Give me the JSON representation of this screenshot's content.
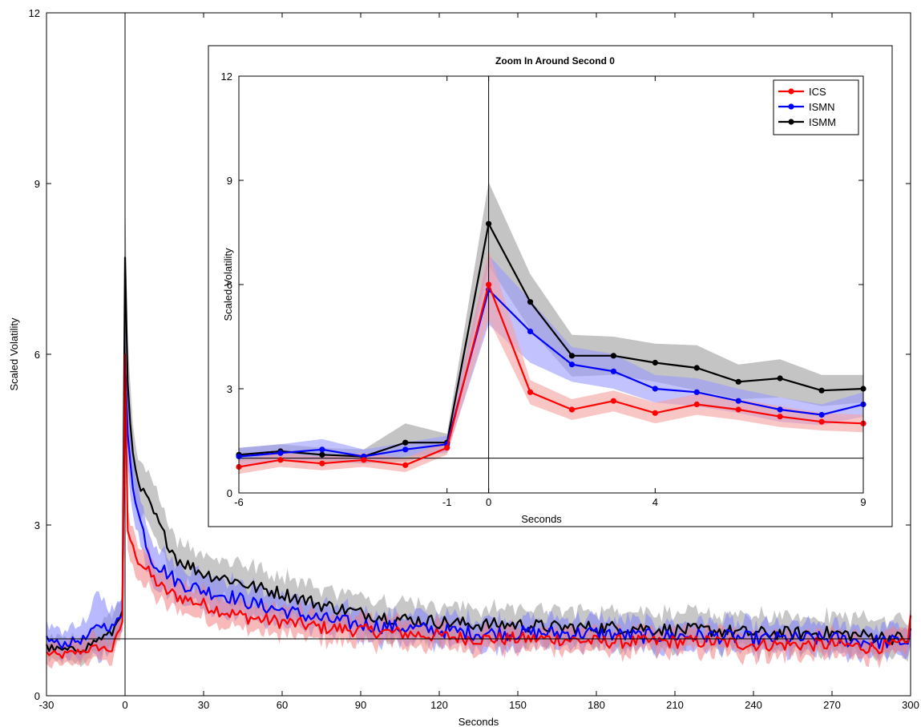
{
  "chart_data": [
    {
      "id": "main",
      "type": "line",
      "title": "",
      "xlabel": "Seconds",
      "ylabel": "Scaled Volatility",
      "xlim": [
        -30,
        300
      ],
      "ylim": [
        0,
        12
      ],
      "xticks": [
        -30,
        0,
        30,
        60,
        90,
        120,
        150,
        180,
        210,
        240,
        270,
        300
      ],
      "yticks": [
        0,
        3,
        6,
        9,
        12
      ],
      "reference_lines": {
        "x": 0,
        "y": 1
      },
      "bands": "shaded confidence band around each series",
      "series": [
        {
          "name": "ICS",
          "color": "#ff0000",
          "band_color": "#f08080",
          "x": [
            -30,
            -25,
            -20,
            -15,
            -10,
            -5,
            -1,
            0,
            1,
            3,
            5,
            10,
            15,
            20,
            30,
            40,
            50,
            60,
            75,
            90,
            105,
            120,
            135,
            150,
            165,
            180,
            195,
            210,
            225,
            240,
            255,
            270,
            285,
            299,
            300
          ],
          "y": [
            0.75,
            0.7,
            0.75,
            0.8,
            0.85,
            0.8,
            1.3,
            6.0,
            2.9,
            2.6,
            2.4,
            2.1,
            1.85,
            1.75,
            1.6,
            1.45,
            1.35,
            1.3,
            1.2,
            1.15,
            1.1,
            1.05,
            1.0,
            1.0,
            1.0,
            0.95,
            0.95,
            0.95,
            0.95,
            0.9,
            0.9,
            0.9,
            0.85,
            0.9,
            1.5
          ],
          "band": [
            0.2,
            0.2,
            0.2,
            0.2,
            0.2,
            0.2,
            0.2,
            1.0,
            0.35,
            0.3,
            0.3,
            0.3,
            0.25,
            0.25,
            0.25,
            0.25,
            0.25,
            0.22,
            0.22,
            0.22,
            0.2,
            0.2,
            0.2,
            0.2,
            0.2,
            0.2,
            0.2,
            0.2,
            0.2,
            0.2,
            0.2,
            0.2,
            0.2,
            0.2,
            0.25
          ]
        },
        {
          "name": "ISMN",
          "color": "#0000ff",
          "band_color": "#8080ff",
          "x": [
            -30,
            -25,
            -20,
            -15,
            -10,
            -5,
            -1,
            0,
            1,
            3,
            5,
            10,
            15,
            20,
            30,
            40,
            50,
            60,
            75,
            90,
            105,
            120,
            135,
            150,
            165,
            180,
            195,
            210,
            225,
            240,
            255,
            270,
            285,
            299,
            300
          ],
          "y": [
            1.0,
            0.9,
            0.95,
            1.0,
            1.25,
            1.2,
            1.4,
            5.9,
            4.6,
            3.7,
            3.2,
            2.4,
            2.2,
            2.0,
            1.85,
            1.75,
            1.6,
            1.5,
            1.35,
            1.25,
            1.2,
            1.15,
            1.1,
            1.1,
            1.1,
            1.1,
            1.05,
            1.05,
            1.05,
            1.0,
            1.0,
            1.0,
            0.95,
            0.95,
            1.2
          ],
          "band": [
            0.25,
            0.25,
            0.3,
            0.3,
            0.6,
            0.3,
            0.3,
            1.0,
            0.6,
            0.5,
            0.4,
            0.35,
            0.3,
            0.3,
            0.3,
            0.3,
            0.3,
            0.25,
            0.25,
            0.25,
            0.25,
            0.25,
            0.25,
            0.25,
            0.25,
            0.25,
            0.25,
            0.25,
            0.25,
            0.25,
            0.25,
            0.25,
            0.25,
            0.25,
            0.3
          ]
        },
        {
          "name": "ISMM",
          "color": "#000000",
          "band_color": "#999999",
          "x": [
            -30,
            -25,
            -20,
            -15,
            -10,
            -5,
            -1,
            0,
            1,
            3,
            5,
            10,
            15,
            20,
            30,
            40,
            50,
            60,
            75,
            90,
            105,
            120,
            135,
            150,
            165,
            180,
            195,
            210,
            225,
            240,
            255,
            270,
            285,
            299,
            300
          ],
          "y": [
            0.85,
            0.8,
            0.8,
            0.85,
            1.0,
            1.1,
            1.5,
            7.7,
            5.5,
            4.2,
            3.7,
            3.3,
            2.8,
            2.4,
            2.15,
            2.05,
            1.9,
            1.8,
            1.6,
            1.45,
            1.35,
            1.3,
            1.25,
            1.25,
            1.2,
            1.2,
            1.2,
            1.15,
            1.15,
            1.1,
            1.1,
            1.1,
            1.05,
            1.0,
            1.1
          ],
          "band": [
            0.2,
            0.2,
            0.2,
            0.2,
            0.25,
            0.3,
            0.3,
            1.2,
            0.8,
            0.5,
            0.45,
            0.45,
            0.4,
            0.35,
            0.35,
            0.35,
            0.35,
            0.3,
            0.3,
            0.3,
            0.3,
            0.3,
            0.3,
            0.3,
            0.3,
            0.3,
            0.3,
            0.3,
            0.3,
            0.3,
            0.3,
            0.3,
            0.3,
            0.3,
            0.3
          ]
        }
      ]
    },
    {
      "id": "inset",
      "type": "line",
      "title": "Zoom In Around Second 0",
      "xlabel": "Seconds",
      "ylabel": "Scaled Volatility",
      "xlim": [
        -6,
        9
      ],
      "ylim": [
        0,
        12
      ],
      "xticks": [
        -6,
        -1,
        0,
        4,
        9
      ],
      "yticks": [
        0,
        3,
        6,
        9,
        12
      ],
      "reference_lines": {
        "x": 0,
        "y": 1
      },
      "legend": {
        "position": "top-right"
      },
      "x": [
        -6,
        -5,
        -4,
        -3,
        -2,
        -1,
        0,
        1,
        2,
        3,
        4,
        5,
        6,
        7,
        8,
        9
      ],
      "series": [
        {
          "name": "ICS",
          "color": "#ff0000",
          "band_color": "#f5a0a0",
          "y": [
            0.75,
            0.95,
            0.85,
            0.95,
            0.8,
            1.3,
            6.0,
            2.9,
            2.4,
            2.65,
            2.3,
            2.55,
            2.4,
            2.2,
            2.05,
            2.0
          ],
          "band": [
            0.2,
            0.2,
            0.2,
            0.2,
            0.2,
            0.2,
            1.0,
            0.35,
            0.3,
            0.3,
            0.3,
            0.3,
            0.3,
            0.3,
            0.25,
            0.25
          ]
        },
        {
          "name": "ISMN",
          "color": "#0000ff",
          "band_color": "#9a9aff",
          "y": [
            1.05,
            1.15,
            1.25,
            1.05,
            1.25,
            1.4,
            5.85,
            4.65,
            3.7,
            3.5,
            3.0,
            2.9,
            2.65,
            2.4,
            2.25,
            2.55
          ],
          "band": [
            0.25,
            0.25,
            0.3,
            0.2,
            0.2,
            0.25,
            1.0,
            0.9,
            0.5,
            0.5,
            0.4,
            0.4,
            0.35,
            0.35,
            0.3,
            0.35
          ]
        },
        {
          "name": "ISMM",
          "color": "#000000",
          "band_color": "#9c9c9c",
          "y": [
            1.1,
            1.2,
            1.1,
            1.05,
            1.45,
            1.45,
            7.75,
            5.5,
            3.95,
            3.95,
            3.75,
            3.6,
            3.2,
            3.3,
            2.95,
            3.0
          ],
          "band": [
            0.2,
            0.2,
            0.2,
            0.2,
            0.55,
            0.25,
            1.2,
            0.8,
            0.6,
            0.55,
            0.55,
            0.65,
            0.5,
            0.55,
            0.45,
            0.4
          ]
        }
      ]
    }
  ]
}
